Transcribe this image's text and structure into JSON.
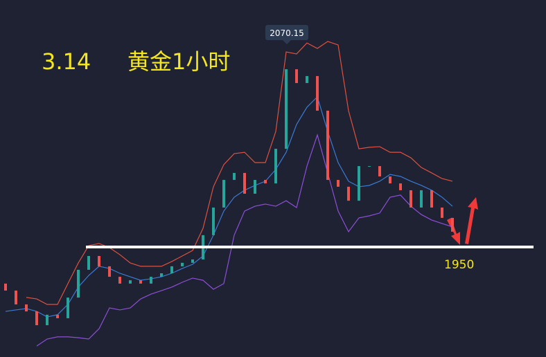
{
  "chart_data": {
    "type": "candlestick",
    "title": "3.14",
    "subtitle": "黄金1小时",
    "ylim": [
      1883.9,
      2098.4
    ],
    "open": [
      1928.0,
      1923.8,
      1915.5,
      1911.3,
      1903.0,
      1909.3,
      1907.2,
      1919.6,
      1936.3,
      1944.6,
      1938.4,
      1932.1,
      1928.0,
      1930.0,
      1928.0,
      1932.1,
      1934.2,
      1938.4,
      1940.5,
      1942.5,
      1957.1,
      1973.7,
      1990.3,
      1994.5,
      1982.0,
      1990.3,
      1988.2,
      2009.0,
      2056.8,
      2048.5,
      2052.7,
      2031.9,
      1990.3,
      1986.2,
      1977.8,
      1998.6,
      1998.6,
      1992.4,
      1988.2,
      1984.1,
      1973.7,
      1984.1,
      1973.7,
      1967.5
    ],
    "close": [
      1923.8,
      1915.5,
      1911.3,
      1903.0,
      1909.3,
      1907.2,
      1919.6,
      1936.3,
      1944.6,
      1938.4,
      1932.1,
      1928.0,
      1930.0,
      1928.0,
      1932.1,
      1934.2,
      1938.4,
      1940.5,
      1942.5,
      1957.1,
      1973.7,
      1990.3,
      1994.5,
      1982.0,
      1990.3,
      1988.2,
      2009.0,
      2056.8,
      2048.5,
      2052.7,
      2031.9,
      1990.3,
      1986.2,
      1977.8,
      1998.6,
      1998.6,
      1992.4,
      1988.2,
      1984.1,
      1973.7,
      1984.1,
      1973.7,
      1967.5,
      1959.2
    ],
    "up_color": "#26a69a",
    "down_color": "#ef5350",
    "bands": [
      {
        "color": "#e0513f",
        "values": [
          null,
          null,
          1919.7,
          1918.8,
          1915.5,
          1915.5,
          1928.0,
          1940.4,
          1950.8,
          1952.1,
          1949.6,
          1945.4,
          1940.4,
          1938.4,
          1938.4,
          1938.4,
          1941.3,
          1944.6,
          1947.9,
          1961.2,
          1986.2,
          1999.5,
          2006.1,
          2006.9,
          2000.7,
          2000.7,
          2019.4,
          2067.2,
          2066.0,
          2072.6,
          2069.3,
          2073.5,
          2071.4,
          2031.9,
          2009.0,
          2009.9,
          2010.3,
          2006.9,
          2006.9,
          2003.6,
          1997.8,
          1994.5,
          1991.1,
          1989.5
        ]
      },
      {
        "color": "#3a7bd5",
        "values": [
          1911.3,
          1912.2,
          1913.0,
          1911.3,
          1908.0,
          1909.3,
          1915.5,
          1925.9,
          1932.9,
          1938.4,
          1937.1,
          1934.2,
          1932.1,
          1930.0,
          1930.9,
          1932.1,
          1934.2,
          1937.1,
          1939.6,
          1944.6,
          1957.1,
          1971.6,
          1979.9,
          1984.1,
          1987.0,
          1989.5,
          1996.6,
          2006.9,
          2023.6,
          2034.0,
          2040.2,
          2019.4,
          2000.7,
          1989.5,
          1986.2,
          1987.0,
          1989.5,
          1993.6,
          1992.4,
          1989.5,
          1987.0,
          1984.1,
          1979.9,
          1974.5
        ]
      },
      {
        "color": "#8e4fd8",
        "values": [
          null,
          null,
          null,
          1890.5,
          1894.7,
          1896.0,
          1896.0,
          1895.5,
          1894.7,
          1900.9,
          1913.4,
          1912.2,
          1913.4,
          1918.8,
          1921.7,
          1923.8,
          1925.9,
          1928.8,
          1931.3,
          1930.0,
          1924.6,
          1928.0,
          1957.1,
          1971.6,
          1974.5,
          1975.8,
          1974.5,
          1977.8,
          1973.7,
          1998.6,
          2017.3,
          1994.5,
          1971.6,
          1959.2,
          1967.5,
          1968.7,
          1970.4,
          1979.9,
          1981.2,
          1974.5,
          1969.5,
          1966.2,
          1964.1,
          1962.1
        ]
      }
    ],
    "high_marker": 2070.15,
    "support": 1950,
    "support_color": "#ffffff",
    "text_color": "#f5e61e"
  }
}
